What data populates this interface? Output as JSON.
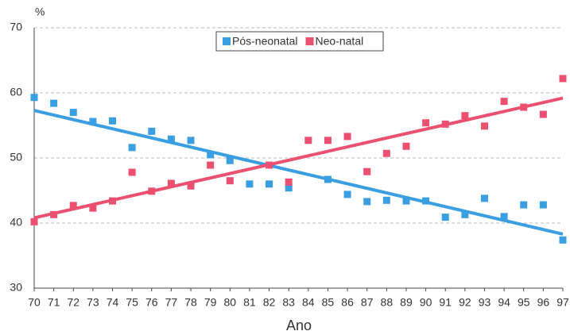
{
  "chart_data": {
    "type": "scatter",
    "y_label": "%",
    "x_label": "Ano",
    "x": [
      70,
      71,
      72,
      73,
      74,
      75,
      76,
      77,
      78,
      79,
      80,
      81,
      82,
      83,
      84,
      85,
      86,
      87,
      88,
      89,
      90,
      91,
      92,
      93,
      94,
      95,
      96,
      97
    ],
    "xlim": [
      70,
      97
    ],
    "xticks": [
      70,
      71,
      72,
      73,
      74,
      75,
      76,
      77,
      78,
      79,
      80,
      81,
      82,
      83,
      84,
      85,
      86,
      87,
      88,
      89,
      90,
      91,
      92,
      93,
      94,
      95,
      96,
      97
    ],
    "ylim": [
      30,
      70
    ],
    "yticks": [
      30,
      40,
      50,
      60,
      70
    ],
    "grid": true,
    "legend": "top",
    "series": [
      {
        "name": "Pós-neonatal",
        "color": "#3a9fe2",
        "values": [
          59.3,
          58.4,
          57.0,
          55.6,
          55.7,
          51.6,
          54.1,
          52.9,
          52.7,
          50.5,
          49.6,
          46.0,
          46.0,
          45.4,
          null,
          46.7,
          44.4,
          43.3,
          43.5,
          43.4,
          43.4,
          40.9,
          41.3,
          43.8,
          41.0,
          42.8,
          42.8,
          37.4
        ],
        "trend": {
          "x": [
            70,
            97
          ],
          "values": [
            57.3,
            38.3
          ]
        }
      },
      {
        "name": "Neo-natal",
        "color": "#ec5070",
        "values": [
          40.2,
          41.3,
          42.7,
          42.3,
          43.4,
          47.8,
          44.9,
          46.1,
          45.7,
          48.9,
          46.5,
          null,
          48.9,
          46.3,
          52.7,
          52.7,
          53.3,
          47.9,
          50.7,
          51.8,
          55.4,
          55.2,
          56.5,
          54.9,
          58.7,
          57.8,
          56.7,
          62.2
        ],
        "trend": {
          "x": [
            70,
            97
          ],
          "values": [
            40.8,
            59.2
          ]
        }
      }
    ]
  }
}
